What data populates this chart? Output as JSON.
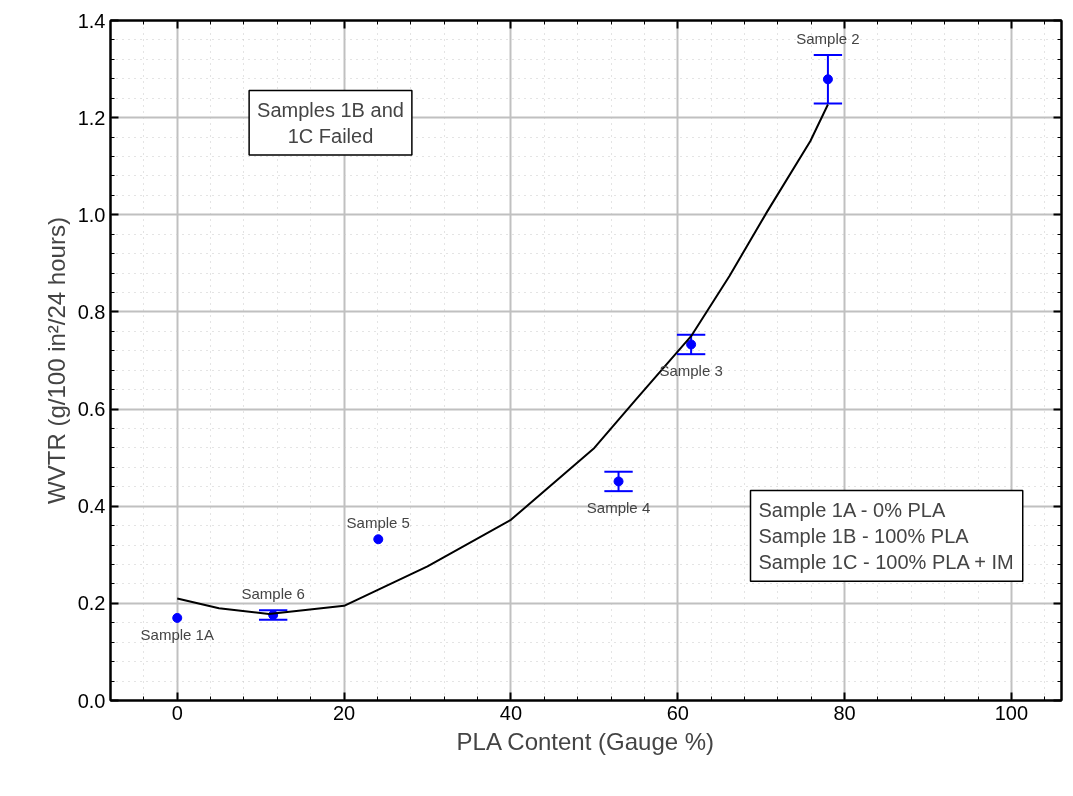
{
  "chart_data": {
    "type": "scatter",
    "xlabel": "PLA Content (Gauge %)",
    "ylabel": "WVTR (g/100 in²/24 hours)",
    "xlim": [
      -8,
      106
    ],
    "ylim": [
      0,
      1.4
    ],
    "xticks": [
      0,
      20,
      40,
      60,
      80,
      100
    ],
    "yticks": [
      {
        "value": 0,
        "label": "0.0"
      },
      {
        "value": 0.2,
        "label": "0.2"
      },
      {
        "value": 0.4,
        "label": "0.4"
      },
      {
        "value": 0.6,
        "label": "0.6"
      },
      {
        "value": 0.8,
        "label": "0.8"
      },
      {
        "value": 1.0,
        "label": "1.0"
      },
      {
        "value": 1.2,
        "label": "1.2"
      },
      {
        "value": 1.4,
        "label": "1.4"
      }
    ],
    "grid": true,
    "marker": "circle",
    "series": [
      {
        "color": "#0000ff",
        "x": [
          0,
          11.5,
          24.1,
          52.9,
          61.6,
          78.0
        ],
        "values": [
          0.17,
          0.176,
          0.332,
          0.451,
          0.733,
          1.279
        ],
        "errors": [
          null,
          0.01,
          null,
          0.02,
          0.02,
          0.05
        ]
      },
      {
        "type": "line",
        "color": "#000000",
        "marker": "none",
        "x": [
          0,
          5,
          11,
          20,
          30,
          40,
          50,
          55,
          61.6,
          66.2,
          70.7,
          75.9,
          78
        ],
        "values": [
          0.21,
          0.19,
          0.178,
          0.195,
          0.276,
          0.372,
          0.52,
          0.62,
          0.75,
          0.874,
          1.006,
          1.152,
          1.227
        ]
      }
    ],
    "annotations": [
      {
        "text": "Sample 1A",
        "x": 0,
        "y": 0.17
      },
      {
        "text": "Sample 6",
        "x": 11.5,
        "y": 0.176
      },
      {
        "text": "Sample 5",
        "x": 24.1,
        "y": 0.332
      },
      {
        "text": "Sample 4",
        "x": 52.9,
        "y": 0.451
      },
      {
        "text": "Sample 3",
        "x": 61.6,
        "y": 0.733
      },
      {
        "text": "Sample 2",
        "x": 78.0,
        "y": 1.279
      },
      "Samples 1B and 1C Failed",
      "Sample 1A - 0% PLA\nSample 1B - 100% PLA\nSample 1C - 100% PLA + IM"
    ]
  }
}
